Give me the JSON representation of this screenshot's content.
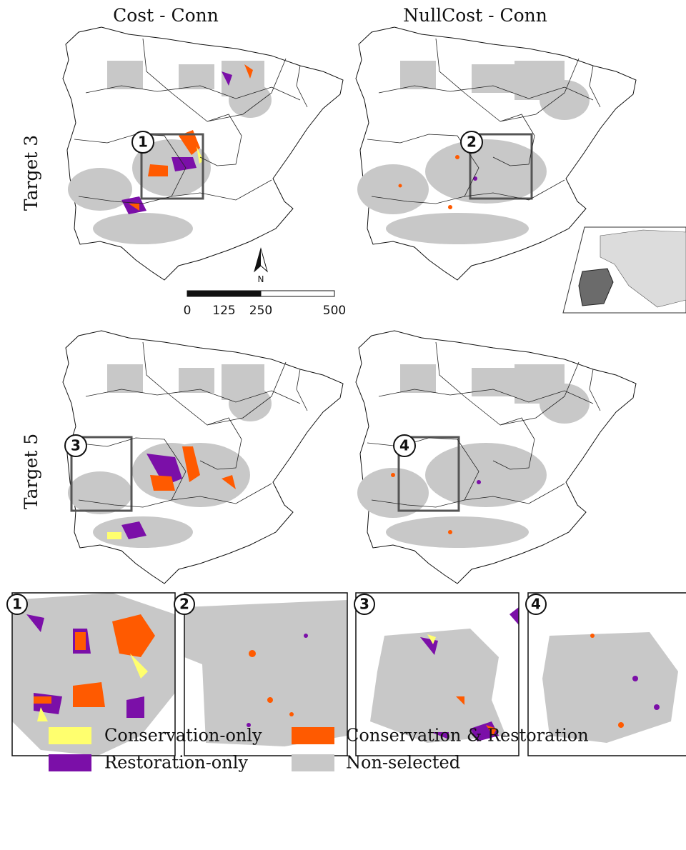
{
  "columns": [
    "Cost - Conn",
    "NullCost - Conn"
  ],
  "rows": [
    "Target 3",
    "Target 5"
  ],
  "insets": [
    "1",
    "2",
    "3",
    "4"
  ],
  "north": "N",
  "scale_bar": {
    "ticks": [
      0,
      125,
      250,
      500
    ]
  },
  "legend": [
    {
      "label": "Conservation-only",
      "color": "#ffff6e"
    },
    {
      "label": "Conservation & Restoration",
      "color": "#ff5a00"
    },
    {
      "label": "Restoration-only",
      "color": "#7b0fa8"
    },
    {
      "label": "Non-selected",
      "color": "#c8c8c8"
    }
  ]
}
